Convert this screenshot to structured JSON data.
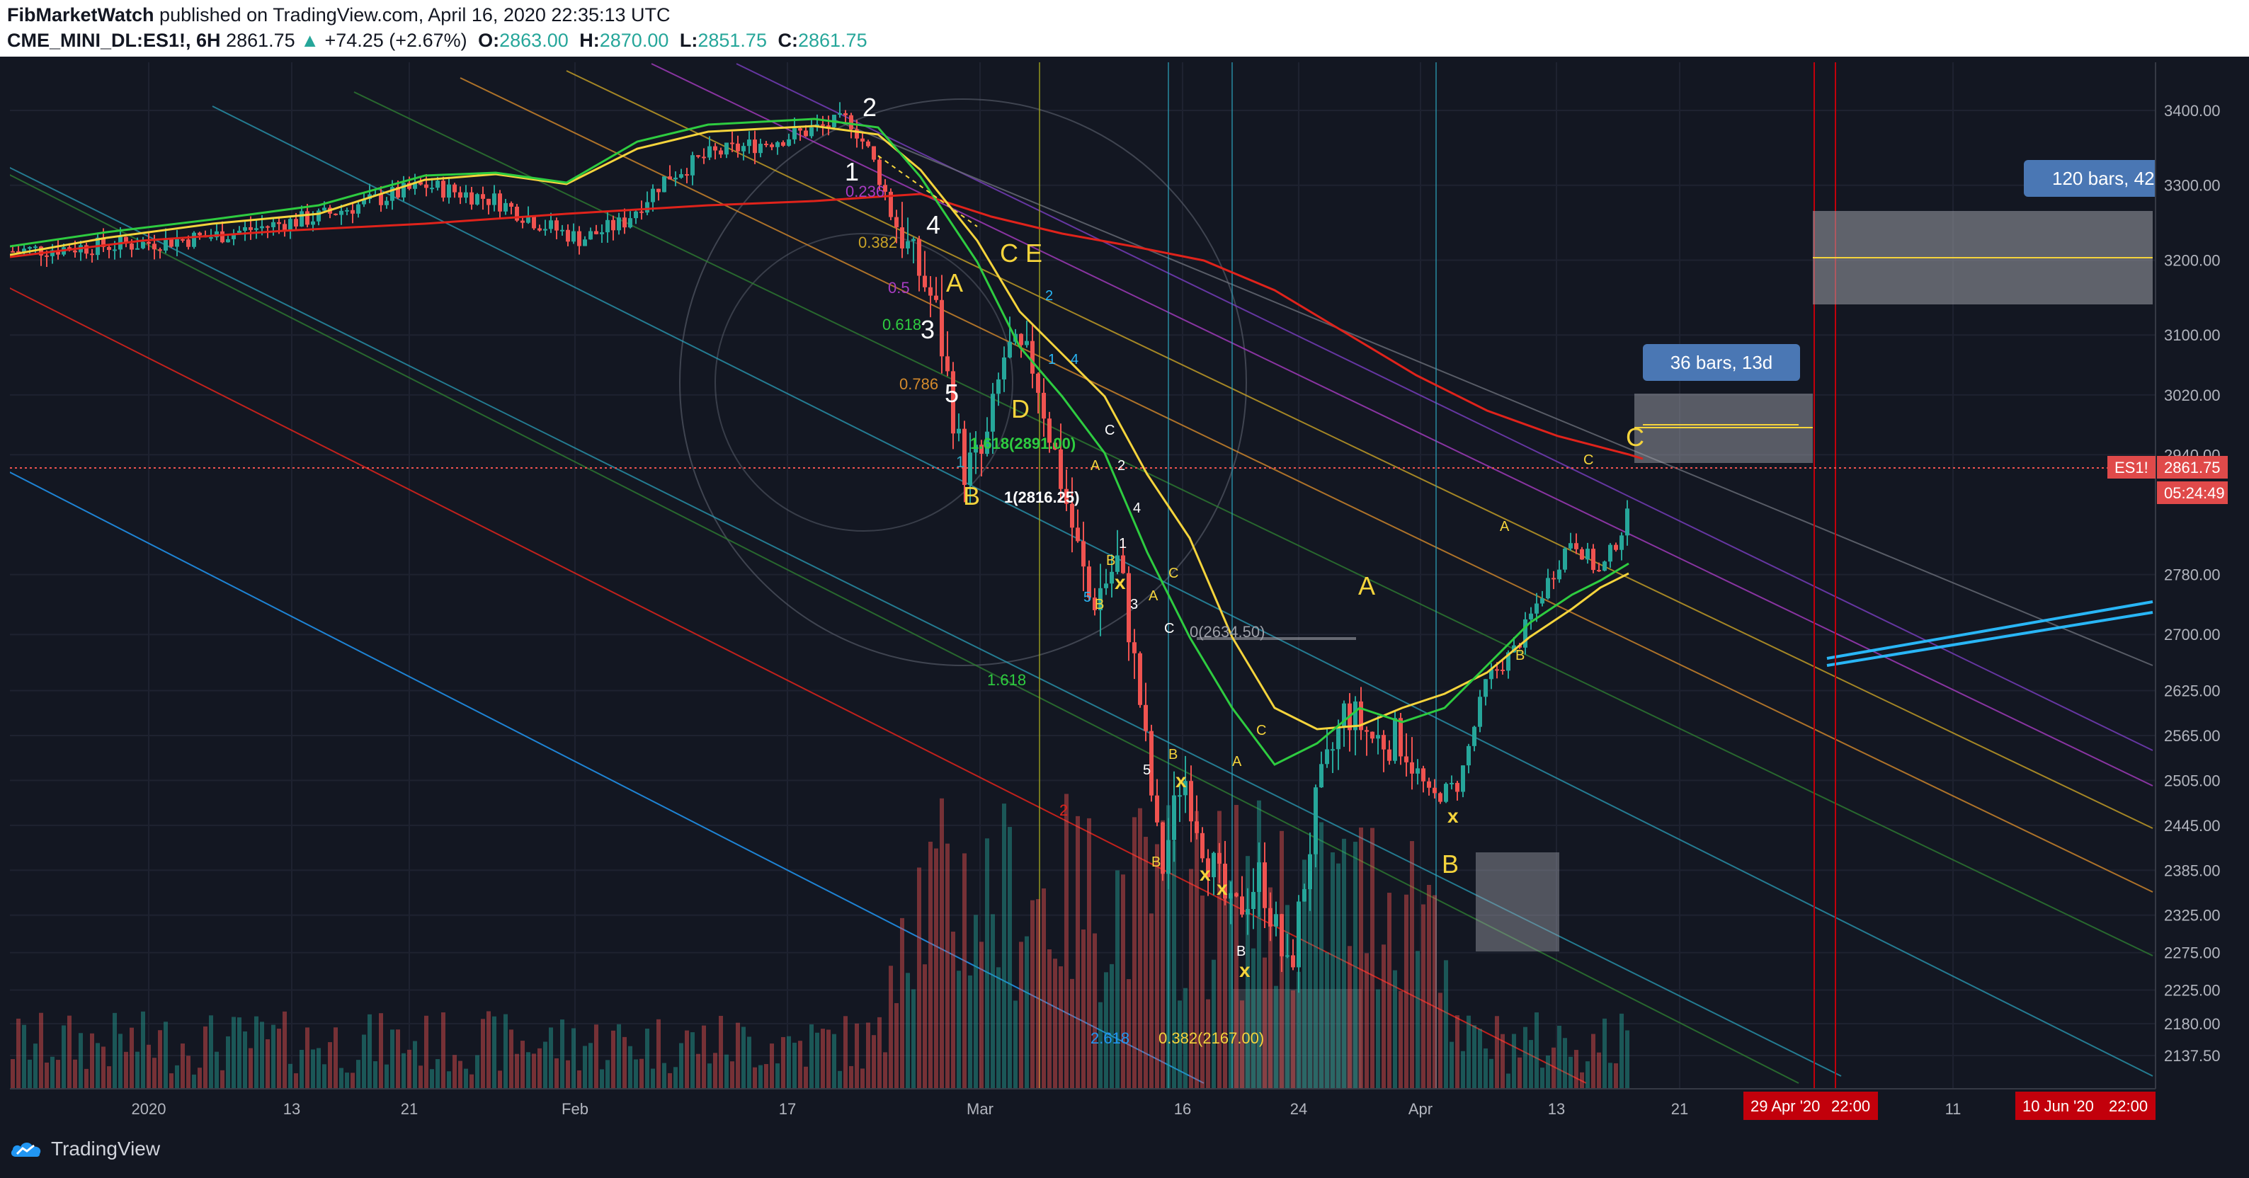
{
  "header": {
    "author": "FibMarketWatch",
    "published_text": "published on TradingView.com, April 16, 2020 22:35:13 UTC",
    "symbol": "CME_MINI_DL:ES1!, 6H",
    "last_price": "2861.75",
    "change": "+74.25 (+2.67%)",
    "open_label": "O:",
    "open_value": "2863.00",
    "high_label": "H:",
    "high_value": "2870.00",
    "low_label": "L:",
    "low_value": "2851.75",
    "close_label": "C:",
    "close_value": "2861.75"
  },
  "price_axis": {
    "ticks": [
      "3400.00",
      "3300.00",
      "3200.00",
      "3100.00",
      "3020.00",
      "2940.00",
      "2861.75",
      "2780.00",
      "2700.00",
      "2625.00",
      "2565.00",
      "2505.00",
      "2445.00",
      "2385.00",
      "2325.00",
      "2275.00",
      "2225.00",
      "2180.00",
      "2137.50"
    ],
    "symbol_tag": "ES1!",
    "last_price_tag": "2861.75",
    "countdown_tag": "05:24:49",
    "tag_color": "#e04a4a"
  },
  "time_axis": {
    "labels": [
      "2020",
      "13",
      "21",
      "Feb",
      "17",
      "Mar",
      "16",
      "24",
      "Apr",
      "13",
      "21",
      "11"
    ],
    "marked_dates": [
      "29 Apr '20",
      "22:00",
      "10 Jun '20",
      "22:00"
    ],
    "marked_color": "#c2000b"
  },
  "annotations": {
    "bars_box_1": "36 bars, 13d",
    "bars_box_2": "120 bars, 42",
    "wave_labels": [
      "2",
      "1",
      "4",
      "3",
      "5",
      "A",
      "B",
      "C",
      "E",
      "D",
      "A",
      "B",
      "C",
      "B",
      "x",
      "x",
      "x",
      "x",
      "x",
      "x",
      "A",
      "B",
      "C"
    ],
    "fib_labels": [
      "0.236",
      "0.382",
      "0.5",
      "0.618",
      "0.786",
      "1",
      "1.618(2891.00)",
      "1(2816.25)",
      "0(2634.50)",
      "1.618",
      "2.618",
      "0.382(2167.00)",
      "2"
    ],
    "small_labels": [
      "2",
      "4",
      "1",
      "C",
      "A",
      "2",
      "4",
      "B",
      "1",
      "5",
      "B",
      "3",
      "A",
      "C",
      "C",
      "B",
      "5",
      "A",
      "C",
      "B",
      "B",
      "A",
      "B",
      "C",
      "2",
      "3",
      "5"
    ]
  },
  "colors": {
    "background": "#131722",
    "candle_up": "#26a69a",
    "candle_down": "#ef5350",
    "ma_red": "#e0231b",
    "ma_yellow": "#f5d43c",
    "ma_green": "#2ecc40",
    "bars_box": "#4a77b4",
    "trendline": "#29b6f6"
  },
  "icons": {
    "tradingview_logo": "tradingview-cloud-icon",
    "fib_circle": "circle-outline"
  },
  "footer": {
    "logo_text": "TradingView"
  }
}
